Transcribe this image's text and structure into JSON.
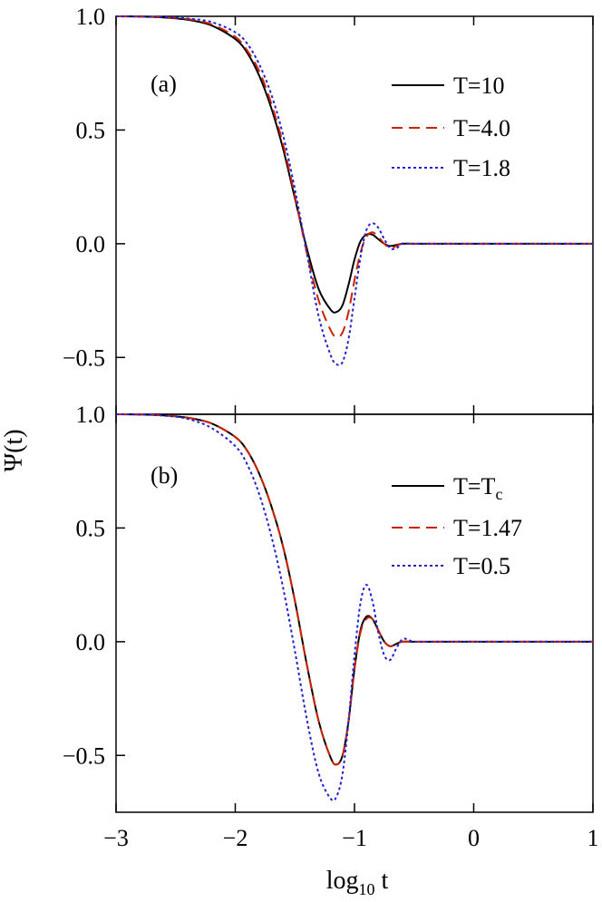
{
  "chart_data": [
    {
      "type": "line",
      "panel_label": "(a)",
      "xlim": [
        -3,
        1
      ],
      "ylim": [
        -0.75,
        1.0
      ],
      "x_ticks": [
        -3,
        -2,
        -1,
        0,
        1
      ],
      "y_ticks": [
        {
          "value": -0.5,
          "label": "−0.5"
        },
        {
          "value": 0.0,
          "label": "0.0"
        },
        {
          "value": 0.5,
          "label": "0.5"
        },
        {
          "value": 1.0,
          "label": "1.0"
        }
      ],
      "legend_position": "top-right",
      "series": [
        {
          "name": "T=10",
          "color": "#000000",
          "dash": "solid",
          "x": [
            -3.0,
            -2.8,
            -2.6,
            -2.4,
            -2.2,
            -2.0,
            -1.9,
            -1.8,
            -1.7,
            -1.6,
            -1.5,
            -1.4,
            -1.3,
            -1.2,
            -1.15,
            -1.1,
            -1.05,
            -1.0,
            -0.95,
            -0.9,
            -0.85,
            -0.8,
            -0.75,
            -0.7,
            -0.6,
            -0.5,
            -0.3,
            0.0,
            0.5,
            1.0
          ],
          "y": [
            1.0,
            0.999,
            0.995,
            0.985,
            0.96,
            0.9,
            0.84,
            0.74,
            0.6,
            0.42,
            0.2,
            -0.02,
            -0.2,
            -0.29,
            -0.3,
            -0.27,
            -0.18,
            -0.07,
            0.01,
            0.04,
            0.04,
            0.02,
            0.0,
            -0.01,
            0.0,
            0.0,
            0.0,
            0.0,
            0.0,
            0.0
          ]
        },
        {
          "name": "T=4.0",
          "color": "#cc2200",
          "dash": "dashed",
          "x": [
            -3.0,
            -2.8,
            -2.6,
            -2.4,
            -2.2,
            -2.0,
            -1.9,
            -1.8,
            -1.7,
            -1.6,
            -1.5,
            -1.4,
            -1.3,
            -1.2,
            -1.15,
            -1.1,
            -1.05,
            -1.0,
            -0.95,
            -0.9,
            -0.85,
            -0.8,
            -0.75,
            -0.7,
            -0.65,
            -0.6,
            -0.5,
            -0.3,
            0.0,
            0.5,
            1.0
          ],
          "y": [
            1.0,
            0.999,
            0.996,
            0.988,
            0.965,
            0.91,
            0.85,
            0.76,
            0.62,
            0.44,
            0.21,
            -0.04,
            -0.25,
            -0.38,
            -0.41,
            -0.39,
            -0.3,
            -0.16,
            -0.04,
            0.03,
            0.05,
            0.03,
            0.0,
            -0.02,
            -0.01,
            0.0,
            0.0,
            0.0,
            0.0,
            0.0,
            0.0
          ]
        },
        {
          "name": "T=1.8",
          "color": "#2222cc",
          "dash": "dotted",
          "x": [
            -3.0,
            -2.8,
            -2.6,
            -2.4,
            -2.2,
            -2.0,
            -1.9,
            -1.8,
            -1.7,
            -1.6,
            -1.5,
            -1.4,
            -1.3,
            -1.2,
            -1.15,
            -1.1,
            -1.05,
            -1.0,
            -0.95,
            -0.9,
            -0.85,
            -0.8,
            -0.75,
            -0.7,
            -0.65,
            -0.6,
            -0.55,
            -0.5,
            -0.3,
            0.0,
            0.5,
            1.0
          ],
          "y": [
            1.0,
            0.999,
            0.997,
            0.99,
            0.975,
            0.93,
            0.88,
            0.79,
            0.66,
            0.48,
            0.24,
            -0.04,
            -0.32,
            -0.49,
            -0.53,
            -0.52,
            -0.42,
            -0.24,
            -0.06,
            0.06,
            0.09,
            0.07,
            0.02,
            -0.02,
            -0.02,
            0.0,
            0.0,
            0.0,
            0.0,
            0.0,
            0.0,
            0.0
          ]
        }
      ]
    },
    {
      "type": "line",
      "panel_label": "(b)",
      "xlim": [
        -3,
        1
      ],
      "ylim": [
        -0.75,
        1.0
      ],
      "x_ticks": [
        -3,
        -2,
        -1,
        0,
        1
      ],
      "y_ticks": [
        {
          "value": -0.5,
          "label": "−0.5"
        },
        {
          "value": 0.0,
          "label": "0.0"
        },
        {
          "value": 0.5,
          "label": "0.5"
        },
        {
          "value": 1.0,
          "label": "1.0"
        }
      ],
      "legend_position": "top-right",
      "series": [
        {
          "name": "T=Tc",
          "color": "#000000",
          "dash": "solid",
          "x": [
            -3.0,
            -2.8,
            -2.6,
            -2.4,
            -2.2,
            -2.0,
            -1.9,
            -1.8,
            -1.7,
            -1.6,
            -1.5,
            -1.4,
            -1.3,
            -1.2,
            -1.15,
            -1.1,
            -1.05,
            -1.0,
            -0.95,
            -0.9,
            -0.85,
            -0.8,
            -0.75,
            -0.7,
            -0.65,
            -0.6,
            -0.5,
            -0.3,
            0.0,
            0.5,
            1.0
          ],
          "y": [
            1.0,
            0.999,
            0.995,
            0.985,
            0.96,
            0.9,
            0.84,
            0.74,
            0.6,
            0.42,
            0.18,
            -0.1,
            -0.35,
            -0.51,
            -0.54,
            -0.5,
            -0.35,
            -0.12,
            0.05,
            0.11,
            0.1,
            0.05,
            0.0,
            -0.02,
            -0.01,
            0.0,
            0.0,
            0.0,
            0.0,
            0.0,
            0.0
          ]
        },
        {
          "name": "T=1.47",
          "color": "#cc2200",
          "dash": "dashed",
          "x": [
            -3.0,
            -2.8,
            -2.6,
            -2.4,
            -2.2,
            -2.0,
            -1.9,
            -1.8,
            -1.7,
            -1.6,
            -1.5,
            -1.4,
            -1.3,
            -1.2,
            -1.15,
            -1.1,
            -1.05,
            -1.0,
            -0.95,
            -0.9,
            -0.85,
            -0.8,
            -0.75,
            -0.7,
            -0.65,
            -0.6,
            -0.5,
            -0.3,
            0.0,
            0.5,
            1.0
          ],
          "y": [
            1.0,
            0.999,
            0.995,
            0.985,
            0.96,
            0.9,
            0.84,
            0.74,
            0.6,
            0.42,
            0.18,
            -0.1,
            -0.35,
            -0.51,
            -0.54,
            -0.5,
            -0.35,
            -0.12,
            0.04,
            0.1,
            0.1,
            0.05,
            0.0,
            -0.02,
            -0.01,
            0.0,
            0.0,
            0.0,
            0.0,
            0.0,
            0.0
          ]
        },
        {
          "name": "T=0.5",
          "color": "#2222cc",
          "dash": "dotted",
          "x": [
            -3.0,
            -2.8,
            -2.6,
            -2.4,
            -2.2,
            -2.0,
            -1.9,
            -1.8,
            -1.7,
            -1.6,
            -1.5,
            -1.4,
            -1.3,
            -1.2,
            -1.15,
            -1.1,
            -1.05,
            -1.0,
            -0.95,
            -0.9,
            -0.85,
            -0.8,
            -0.75,
            -0.7,
            -0.65,
            -0.6,
            -0.55,
            -0.5,
            -0.3,
            0.0,
            0.5,
            1.0
          ],
          "y": [
            1.0,
            0.999,
            0.994,
            0.98,
            0.94,
            0.86,
            0.78,
            0.65,
            0.47,
            0.24,
            -0.04,
            -0.34,
            -0.58,
            -0.69,
            -0.68,
            -0.58,
            -0.35,
            -0.06,
            0.17,
            0.25,
            0.18,
            0.04,
            -0.06,
            -0.08,
            -0.03,
            0.01,
            0.01,
            0.0,
            0.0,
            0.0,
            0.0,
            0.0
          ]
        }
      ]
    }
  ],
  "axes": {
    "ylabel": "Ψ(t)",
    "xlabel_main": "log",
    "xlabel_sub": "10",
    "xlabel_tail": " t"
  },
  "legend_labels": {
    "a": [
      "T=10",
      "T=4.0",
      "T=1.8"
    ],
    "b_tc_main": "T=T",
    "b_tc_sub": "c",
    "b": [
      "T=1.47",
      "T=0.5"
    ]
  }
}
